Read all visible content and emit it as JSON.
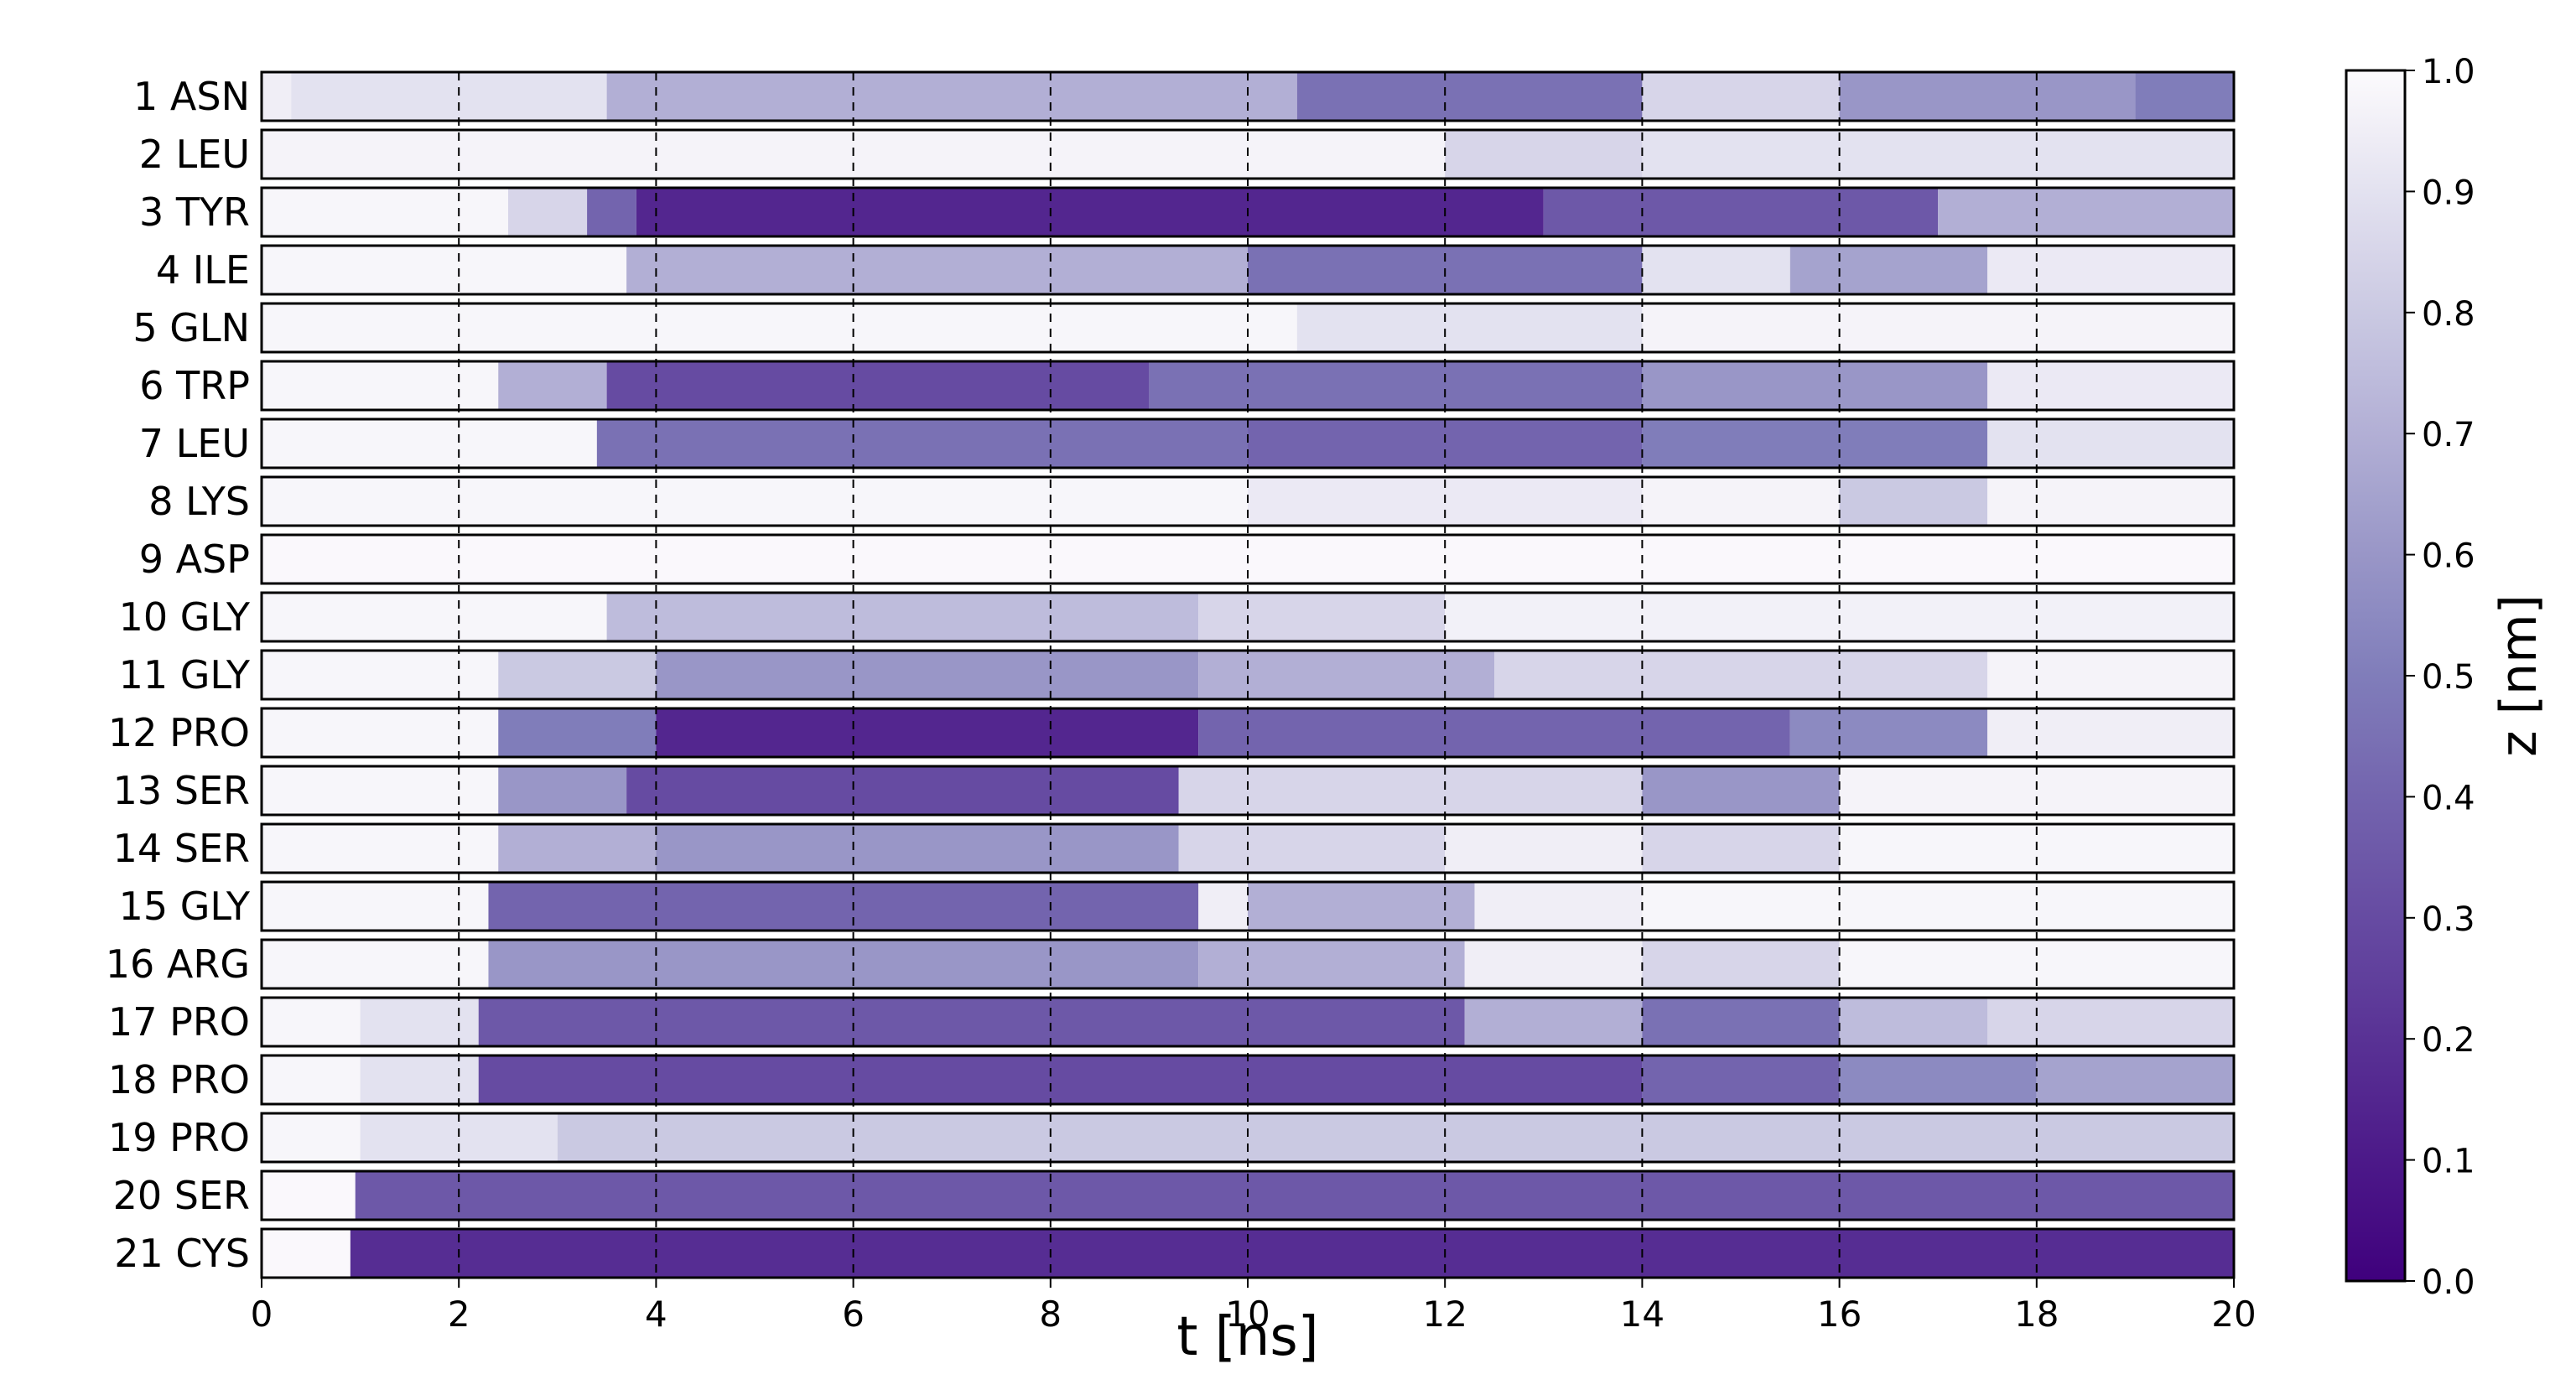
{
  "chart_data": {
    "type": "heatmap",
    "title": "",
    "xlabel": "t [ns]",
    "ylabel": "",
    "xlim": [
      0,
      20
    ],
    "x_ticks": [
      0,
      2,
      4,
      6,
      8,
      10,
      12,
      14,
      16,
      18,
      20
    ],
    "grid": "vertical dashed lines at every 2 ns",
    "colorbar": {
      "label": "z [nm]",
      "range": [
        0.0,
        1.0
      ],
      "ticks": [
        "0.0",
        "0.1",
        "0.2",
        "0.3",
        "0.4",
        "0.5",
        "0.6",
        "0.7",
        "0.8",
        "0.9",
        "1.0"
      ],
      "colormap": "Purples_r",
      "low_color": "#3f007d",
      "high_color": "#fcfbfd"
    },
    "rows": [
      {
        "label": "1 ASN",
        "segments": [
          [
            0,
            0.3,
            0.95
          ],
          [
            0.3,
            3.5,
            0.9
          ],
          [
            3.5,
            10.5,
            0.7
          ],
          [
            10.5,
            14,
            0.45
          ],
          [
            14,
            16,
            0.85
          ],
          [
            16,
            19,
            0.6
          ],
          [
            19,
            20,
            0.5
          ]
        ]
      },
      {
        "label": "2 LEU",
        "segments": [
          [
            0,
            12,
            0.97
          ],
          [
            12,
            14,
            0.85
          ],
          [
            14,
            20,
            0.9
          ]
        ]
      },
      {
        "label": "3 TYR",
        "segments": [
          [
            0,
            2.5,
            0.98
          ],
          [
            2.5,
            3.3,
            0.85
          ],
          [
            3.3,
            3.8,
            0.4
          ],
          [
            3.8,
            13,
            0.15
          ],
          [
            13,
            17,
            0.35
          ],
          [
            17,
            20,
            0.7
          ]
        ]
      },
      {
        "label": "4 ILE",
        "segments": [
          [
            0,
            3.7,
            0.98
          ],
          [
            3.7,
            10,
            0.7
          ],
          [
            10,
            14,
            0.45
          ],
          [
            14,
            15.5,
            0.9
          ],
          [
            15.5,
            17.5,
            0.65
          ],
          [
            17.5,
            20,
            0.93
          ]
        ]
      },
      {
        "label": "5 GLN",
        "segments": [
          [
            0,
            10.5,
            0.98
          ],
          [
            10.5,
            14,
            0.9
          ],
          [
            14,
            20,
            0.97
          ]
        ]
      },
      {
        "label": "6 TRP",
        "segments": [
          [
            0,
            2.4,
            0.98
          ],
          [
            2.4,
            3.5,
            0.7
          ],
          [
            3.5,
            9,
            0.3
          ],
          [
            9,
            14,
            0.45
          ],
          [
            14,
            17.5,
            0.6
          ],
          [
            17.5,
            20,
            0.93
          ]
        ]
      },
      {
        "label": "7 LEU",
        "segments": [
          [
            0,
            3.4,
            0.98
          ],
          [
            3.4,
            10,
            0.45
          ],
          [
            10,
            14,
            0.4
          ],
          [
            14,
            17.5,
            0.5
          ],
          [
            17.5,
            20,
            0.9
          ]
        ]
      },
      {
        "label": "8 LYS",
        "segments": [
          [
            0,
            10,
            0.98
          ],
          [
            10,
            14,
            0.93
          ],
          [
            14,
            16,
            0.97
          ],
          [
            16,
            17.5,
            0.8
          ],
          [
            17.5,
            20,
            0.97
          ]
        ]
      },
      {
        "label": "9 ASP",
        "segments": [
          [
            0,
            20,
            0.99
          ]
        ]
      },
      {
        "label": "10 GLY",
        "segments": [
          [
            0,
            3.5,
            0.98
          ],
          [
            3.5,
            9.5,
            0.75
          ],
          [
            9.5,
            12,
            0.85
          ],
          [
            12,
            20,
            0.96
          ]
        ]
      },
      {
        "label": "11 GLY",
        "segments": [
          [
            0,
            2.4,
            0.98
          ],
          [
            2.4,
            4,
            0.8
          ],
          [
            4,
            9.5,
            0.6
          ],
          [
            9.5,
            12.5,
            0.7
          ],
          [
            12.5,
            17.5,
            0.85
          ],
          [
            17.5,
            20,
            0.97
          ]
        ]
      },
      {
        "label": "12 PRO",
        "segments": [
          [
            0,
            2.4,
            0.98
          ],
          [
            2.4,
            4,
            0.5
          ],
          [
            4,
            9.5,
            0.15
          ],
          [
            9.5,
            15.5,
            0.4
          ],
          [
            15.5,
            17.5,
            0.55
          ],
          [
            17.5,
            20,
            0.95
          ]
        ]
      },
      {
        "label": "13 SER",
        "segments": [
          [
            0,
            2.4,
            0.98
          ],
          [
            2.4,
            3.7,
            0.6
          ],
          [
            3.7,
            9.3,
            0.3
          ],
          [
            9.3,
            14,
            0.85
          ],
          [
            14,
            16,
            0.6
          ],
          [
            16,
            20,
            0.97
          ]
        ]
      },
      {
        "label": "14 SER",
        "segments": [
          [
            0,
            2.4,
            0.98
          ],
          [
            2.4,
            4,
            0.7
          ],
          [
            4,
            9.3,
            0.6
          ],
          [
            9.3,
            12,
            0.85
          ],
          [
            12,
            14,
            0.95
          ],
          [
            14,
            16,
            0.85
          ],
          [
            16,
            20,
            0.98
          ]
        ]
      },
      {
        "label": "15 GLY",
        "segments": [
          [
            0,
            2.3,
            0.98
          ],
          [
            2.3,
            9.5,
            0.4
          ],
          [
            9.5,
            10,
            0.95
          ],
          [
            10,
            12.3,
            0.7
          ],
          [
            12.3,
            14,
            0.95
          ],
          [
            14,
            20,
            0.98
          ]
        ]
      },
      {
        "label": "16 ARG",
        "segments": [
          [
            0,
            2.3,
            0.98
          ],
          [
            2.3,
            9.5,
            0.6
          ],
          [
            9.5,
            12.2,
            0.7
          ],
          [
            12.2,
            14,
            0.95
          ],
          [
            14,
            16,
            0.85
          ],
          [
            16,
            20,
            0.98
          ]
        ]
      },
      {
        "label": "17 PRO",
        "segments": [
          [
            0,
            1,
            0.98
          ],
          [
            1,
            2.2,
            0.9
          ],
          [
            2.2,
            12.2,
            0.35
          ],
          [
            12.2,
            14,
            0.7
          ],
          [
            14,
            16,
            0.45
          ],
          [
            16,
            17.5,
            0.75
          ],
          [
            17.5,
            20,
            0.85
          ]
        ]
      },
      {
        "label": "18 PRO",
        "segments": [
          [
            0,
            1,
            0.98
          ],
          [
            1,
            2.2,
            0.9
          ],
          [
            2.2,
            14,
            0.3
          ],
          [
            14,
            16,
            0.4
          ],
          [
            16,
            18,
            0.55
          ],
          [
            18,
            20,
            0.65
          ]
        ]
      },
      {
        "label": "19 PRO",
        "segments": [
          [
            0,
            1,
            0.98
          ],
          [
            1,
            3,
            0.9
          ],
          [
            3,
            20,
            0.8
          ]
        ]
      },
      {
        "label": "20 SER",
        "segments": [
          [
            0,
            0.95,
            0.99
          ],
          [
            0.95,
            20,
            0.35
          ]
        ]
      },
      {
        "label": "21 CYS",
        "segments": [
          [
            0,
            0.9,
            0.99
          ],
          [
            0.9,
            20,
            0.18
          ]
        ]
      }
    ]
  }
}
